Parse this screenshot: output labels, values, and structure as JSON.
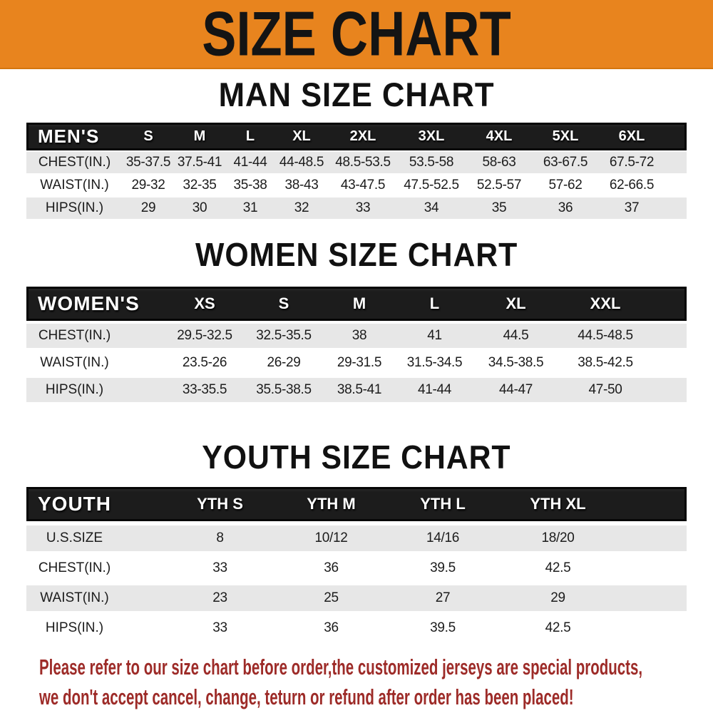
{
  "banner": {
    "title": "SIZE CHART"
  },
  "sections": [
    {
      "heading": "MAN SIZE CHART",
      "label": "MEN'S",
      "columns": [
        "S",
        "M",
        "L",
        "XL",
        "2XL",
        "3XL",
        "4XL",
        "5XL",
        "6XL"
      ],
      "rows": [
        {
          "label": "CHEST(IN.)",
          "values": [
            "35-37.5",
            "37.5-41",
            "41-44",
            "44-48.5",
            "48.5-53.5",
            "53.5-58",
            "58-63",
            "63-67.5",
            "67.5-72"
          ]
        },
        {
          "label": "WAIST(IN.)",
          "values": [
            "29-32",
            "32-35",
            "35-38",
            "38-43",
            "43-47.5",
            "47.5-52.5",
            "52.5-57",
            "57-62",
            "62-66.5"
          ]
        },
        {
          "label": "HIPS(IN.)",
          "values": [
            "29",
            "30",
            "31",
            "32",
            "33",
            "34",
            "35",
            "36",
            "37"
          ]
        }
      ]
    },
    {
      "heading": "WOMEN SIZE CHART",
      "label": "WOMEN'S",
      "columns": [
        "XS",
        "S",
        "M",
        "L",
        "XL",
        "XXL"
      ],
      "rows": [
        {
          "label": "CHEST(IN.)",
          "values": [
            "29.5-32.5",
            "32.5-35.5",
            "38",
            "41",
            "44.5",
            "44.5-48.5"
          ]
        },
        {
          "label": "WAIST(IN.)",
          "values": [
            "23.5-26",
            "26-29",
            "29-31.5",
            "31.5-34.5",
            "34.5-38.5",
            "38.5-42.5"
          ]
        },
        {
          "label": "HIPS(IN.)",
          "values": [
            "33-35.5",
            "35.5-38.5",
            "38.5-41",
            "41-44",
            "44-47",
            "47-50"
          ]
        }
      ]
    },
    {
      "heading": "YOUTH SIZE CHART",
      "label": "YOUTH",
      "columns": [
        "YTH S",
        "YTH M",
        "YTH L",
        "YTH XL"
      ],
      "rows": [
        {
          "label": "U.S.SIZE",
          "values": [
            "8",
            "10/12",
            "14/16",
            "18/20"
          ]
        },
        {
          "label": "CHEST(IN.)",
          "values": [
            "33",
            "36",
            "39.5",
            "42.5"
          ]
        },
        {
          "label": "WAIST(IN.)",
          "values": [
            "23",
            "25",
            "27",
            "29"
          ]
        },
        {
          "label": "HIPS(IN.)",
          "values": [
            "33",
            "36",
            "39.5",
            "42.5"
          ]
        }
      ]
    }
  ],
  "footer": {
    "line1": "Please refer to our size chart before order,the customized jerseys are special products,",
    "line2": "we don't accept cancel, change, teturn or refund after order has been placed!"
  },
  "colors": {
    "banner_bg": "#E8841E",
    "banner_text": "#141414",
    "header_bar_bg": "#1C1C1C",
    "header_bar_text": "#FFFFFF",
    "row_shade": "#E7E7E7",
    "row_plain": "#FFFFFF",
    "body_text": "#1C1C1C",
    "footer_text": "#9D2B28"
  }
}
